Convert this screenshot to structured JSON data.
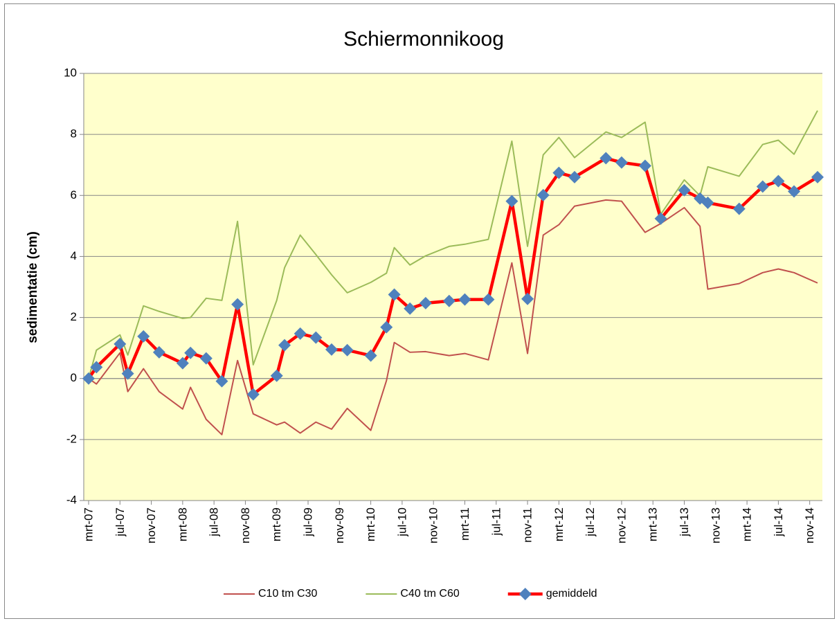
{
  "chart_data": {
    "type": "line",
    "title": "Schiermonnikoog",
    "y_label": "sedimentatie (cm)",
    "x": [
      "2007-03",
      "2007-04",
      "2007-07",
      "2007-08",
      "2007-10",
      "2007-12",
      "2008-03",
      "2008-04",
      "2008-06",
      "2008-08",
      "2008-10",
      "2008-12",
      "2009-03",
      "2009-04",
      "2009-06",
      "2009-08",
      "2009-10",
      "2009-12",
      "2010-03",
      "2010-05",
      "2010-06",
      "2010-08",
      "2010-10",
      "2011-01",
      "2011-03",
      "2011-06",
      "2011-09",
      "2011-11",
      "2012-01",
      "2012-03",
      "2012-05",
      "2012-09",
      "2012-11",
      "2013-02",
      "2013-04",
      "2013-07",
      "2013-09",
      "2013-10",
      "2014-02",
      "2014-05",
      "2014-07",
      "2014-09",
      "2014-12"
    ],
    "series": [
      {
        "name": "C10 tm C30",
        "color": "#c0504d",
        "values": [
          0,
          -0.18,
          0.84,
          -0.43,
          0.32,
          -0.43,
          -1.0,
          -0.29,
          -1.34,
          -1.84,
          0.59,
          -1.16,
          -1.52,
          -1.43,
          -1.79,
          -1.43,
          -1.66,
          -0.98,
          -1.7,
          -0.07,
          1.18,
          0.86,
          0.88,
          0.75,
          0.82,
          0.61,
          3.79,
          0.82,
          4.7,
          5.04,
          5.65,
          5.85,
          5.81,
          4.79,
          5.08,
          5.6,
          4.99,
          2.93,
          3.11,
          3.47,
          3.59,
          3.47,
          3.13
        ]
      },
      {
        "name": "C40 tm C60",
        "color": "#9bbb59",
        "values": [
          0,
          0.93,
          1.43,
          0.77,
          2.38,
          2.2,
          1.97,
          2.0,
          2.63,
          2.56,
          5.15,
          0.45,
          2.56,
          3.63,
          4.7,
          4.06,
          3.4,
          2.81,
          3.15,
          3.45,
          4.29,
          3.72,
          4.02,
          4.33,
          4.4,
          4.56,
          7.78,
          4.33,
          7.33,
          7.9,
          7.24,
          8.08,
          7.9,
          8.4,
          5.38,
          6.51,
          5.99,
          6.94,
          6.63,
          7.67,
          7.81,
          7.35,
          8.78
        ]
      },
      {
        "name": "gemiddeld",
        "color": "#ff0000",
        "marker": "diamond",
        "marker_color": "#4f81bd",
        "values": [
          0,
          0.37,
          1.13,
          0.16,
          1.38,
          0.86,
          0.5,
          0.84,
          0.66,
          -0.09,
          2.43,
          -0.52,
          0.09,
          1.09,
          1.47,
          1.34,
          0.95,
          0.93,
          0.75,
          1.68,
          2.75,
          2.29,
          2.47,
          2.54,
          2.59,
          2.59,
          5.81,
          2.61,
          6.01,
          6.74,
          6.6,
          7.22,
          7.08,
          6.97,
          5.24,
          6.17,
          5.9,
          5.76,
          5.56,
          6.29,
          6.47,
          6.13,
          6.6
        ]
      }
    ],
    "xlim": [
      "2007-03",
      "2014-12"
    ],
    "xticks": [
      {
        "value": "2007-03",
        "label": "mrt-07"
      },
      {
        "value": "2007-07",
        "label": "jul-07"
      },
      {
        "value": "2007-11",
        "label": "nov-07"
      },
      {
        "value": "2008-03",
        "label": "mrt-08"
      },
      {
        "value": "2008-07",
        "label": "jul-08"
      },
      {
        "value": "2008-11",
        "label": "nov-08"
      },
      {
        "value": "2009-03",
        "label": "mrt-09"
      },
      {
        "value": "2009-07",
        "label": "jul-09"
      },
      {
        "value": "2009-11",
        "label": "nov-09"
      },
      {
        "value": "2010-03",
        "label": "mrt-10"
      },
      {
        "value": "2010-07",
        "label": "jul-10"
      },
      {
        "value": "2010-11",
        "label": "nov-10"
      },
      {
        "value": "2011-03",
        "label": "mrt-11"
      },
      {
        "value": "2011-07",
        "label": "jul-11"
      },
      {
        "value": "2011-11",
        "label": "nov-11"
      },
      {
        "value": "2012-03",
        "label": "mrt-12"
      },
      {
        "value": "2012-07",
        "label": "jul-12"
      },
      {
        "value": "2012-11",
        "label": "nov-12"
      },
      {
        "value": "2013-03",
        "label": "mrt-13"
      },
      {
        "value": "2013-07",
        "label": "jul-13"
      },
      {
        "value": "2013-11",
        "label": "nov-13"
      },
      {
        "value": "2014-03",
        "label": "mrt-14"
      },
      {
        "value": "2014-07",
        "label": "jul-14"
      },
      {
        "value": "2014-11",
        "label": "nov-14"
      }
    ],
    "ylim": [
      -4,
      10
    ],
    "yticks": [
      -4,
      -2,
      0,
      2,
      4,
      6,
      8,
      10
    ],
    "grid": true,
    "background": "#ffffcc",
    "legend": "bottom"
  }
}
